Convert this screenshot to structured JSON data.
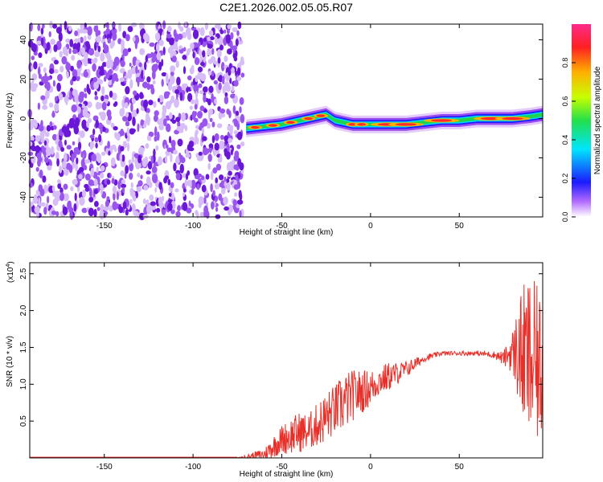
{
  "title": "C2E1.2026.002.05.05.R07",
  "colors": {
    "snr_line": "#e8302a",
    "scatter": "#7a2be0",
    "track_core": "#ff2a2a"
  },
  "chart_data": [
    {
      "type": "heatmap",
      "name": "spectrogram",
      "xlabel": "Height of straight line (km)",
      "ylabel": "Frequency (Hz)",
      "xlim": [
        -192,
        97
      ],
      "ylim": [
        -50,
        48
      ],
      "xticks": [
        -150,
        -100,
        -50,
        0,
        50
      ],
      "yticks": [
        -40,
        -20,
        0,
        20,
        40
      ],
      "noise_region_x": [
        -192,
        -72
      ],
      "track": {
        "x": [
          -70,
          -60,
          -50,
          -40,
          -30,
          -25,
          -20,
          -10,
          0,
          10,
          20,
          30,
          40,
          50,
          60,
          70,
          80,
          90,
          97
        ],
        "freq": [
          -5,
          -4,
          -3,
          -1,
          1,
          2,
          -1,
          -3,
          -3,
          -3,
          -3,
          -2,
          -1,
          -1,
          0,
          0,
          0,
          1,
          2
        ]
      },
      "hot_spots_x": [
        -65,
        -55,
        -45,
        -35,
        -28,
        -10,
        -5,
        10,
        20,
        40,
        68,
        80
      ]
    },
    {
      "type": "colorbar",
      "label": "Normalized spectral amplitude",
      "range": [
        0,
        1
      ],
      "ticks": [
        "0.0",
        "0.2",
        "0.4",
        "0.6",
        "0.8"
      ],
      "tick_values": [
        0.0,
        0.2,
        0.4,
        0.6,
        0.8
      ]
    },
    {
      "type": "line",
      "name": "snr",
      "xlabel": "Height of straight line (km)",
      "ylabel": "SNR (10 * v/v)",
      "scale_label": "(x10",
      "scale_exp": "4",
      "xlim": [
        -192,
        97
      ],
      "ylim": [
        0,
        2.65
      ],
      "xticks": [
        -150,
        -100,
        -50,
        0,
        50
      ],
      "yticks": [
        "0.5",
        "1.0",
        "1.5",
        "2.0",
        "2.5"
      ],
      "ytick_values": [
        0.5,
        1.0,
        1.5,
        2.0,
        2.5
      ],
      "envelope": {
        "x": [
          -192,
          -75,
          -60,
          -55,
          -50,
          -45,
          -40,
          -35,
          -30,
          -25,
          -20,
          -15,
          -10,
          -5,
          0,
          5,
          10,
          15,
          20,
          30,
          40,
          50,
          60,
          70,
          75,
          80,
          85,
          90,
          97
        ],
        "mean": [
          0.0,
          0.0,
          0.05,
          0.15,
          0.25,
          0.3,
          0.35,
          0.35,
          0.45,
          0.55,
          0.65,
          0.75,
          0.85,
          0.9,
          0.95,
          1.05,
          1.1,
          1.15,
          1.2,
          1.35,
          1.42,
          1.42,
          1.42,
          1.4,
          1.35,
          1.45,
          1.4,
          1.3,
          1.2
        ],
        "amp": [
          0.0,
          0.0,
          0.08,
          0.15,
          0.2,
          0.25,
          0.28,
          0.25,
          0.3,
          0.35,
          0.35,
          0.4,
          0.35,
          0.3,
          0.25,
          0.2,
          0.2,
          0.15,
          0.12,
          0.05,
          0.03,
          0.03,
          0.03,
          0.05,
          0.1,
          0.3,
          0.9,
          1.2,
          1.0
        ]
      }
    }
  ]
}
